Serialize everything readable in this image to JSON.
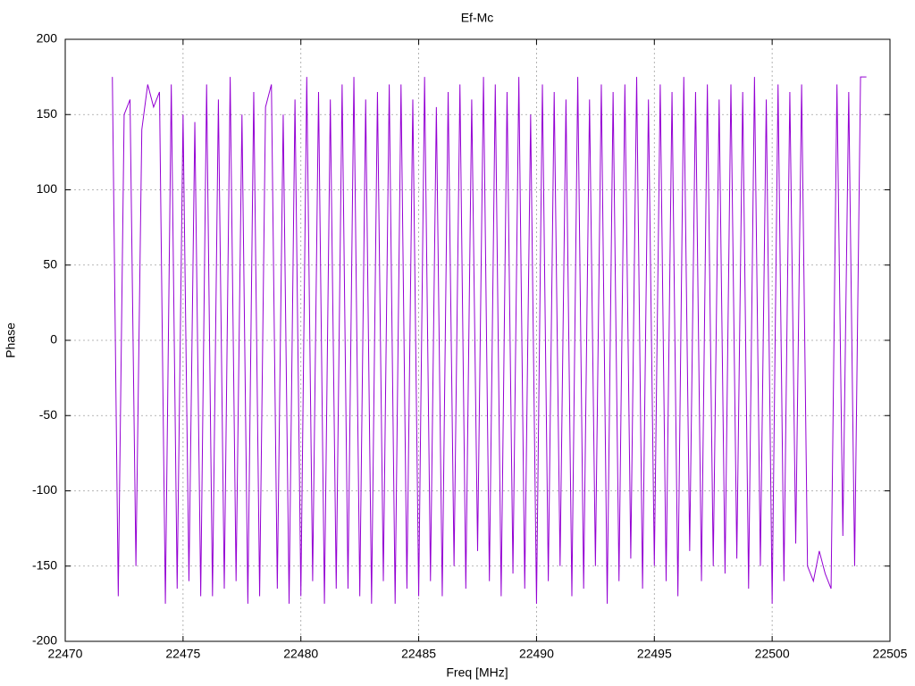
{
  "chart_data": {
    "type": "line",
    "title": "Ef-Mc",
    "x_label": "Freq [MHz]",
    "y_label": "Phase",
    "xlim": [
      22470,
      22505
    ],
    "xticks": [
      22470,
      22475,
      22480,
      22485,
      22490,
      22495,
      22500,
      22505
    ],
    "ylim": [
      -200,
      200
    ],
    "yticks": [
      -200,
      -150,
      -100,
      -50,
      0,
      50,
      100,
      150,
      200
    ],
    "grid": true,
    "x": [
      22472,
      22472.25,
      22472.5,
      22472.75,
      22473,
      22473.25,
      22473.5,
      22473.75,
      22474,
      22474.25,
      22474.5,
      22474.75,
      22475,
      22475.25,
      22475.5,
      22475.75,
      22476,
      22476.25,
      22476.5,
      22476.75,
      22477,
      22477.25,
      22477.5,
      22477.75,
      22478,
      22478.25,
      22478.5,
      22478.75,
      22479,
      22479.25,
      22479.5,
      22479.75,
      22480,
      22480.25,
      22480.5,
      22480.75,
      22481,
      22481.25,
      22481.5,
      22481.75,
      22482,
      22482.25,
      22482.5,
      22482.75,
      22483,
      22483.25,
      22483.5,
      22483.75,
      22484,
      22484.25,
      22484.5,
      22484.75,
      22485,
      22485.25,
      22485.5,
      22485.75,
      22486,
      22486.25,
      22486.5,
      22486.75,
      22487,
      22487.25,
      22487.5,
      22487.75,
      22488,
      22488.25,
      22488.5,
      22488.75,
      22489,
      22489.25,
      22489.5,
      22489.75,
      22490,
      22490.25,
      22490.5,
      22490.75,
      22491,
      22491.25,
      22491.5,
      22491.75,
      22492,
      22492.25,
      22492.5,
      22492.75,
      22493,
      22493.25,
      22493.5,
      22493.75,
      22494,
      22494.25,
      22494.5,
      22494.75,
      22495,
      22495.25,
      22495.5,
      22495.75,
      22496,
      22496.25,
      22496.5,
      22496.75,
      22497,
      22497.25,
      22497.5,
      22497.75,
      22498,
      22498.25,
      22498.5,
      22498.75,
      22499,
      22499.25,
      22499.5,
      22499.75,
      22500,
      22500.25,
      22500.5,
      22500.75,
      22501,
      22501.25,
      22501.5,
      22501.75,
      22502,
      22502.25,
      22502.5,
      22502.75,
      22503,
      22503.25,
      22503.5,
      22503.75,
      22504
    ],
    "series": [
      {
        "name": "Ef-Mc",
        "color": "#9400d3",
        "values": [
          175,
          -170,
          150,
          160,
          -150,
          140,
          170,
          155,
          165,
          -175,
          170,
          -165,
          150,
          -160,
          145,
          -170,
          170,
          -170,
          160,
          -165,
          175,
          -160,
          150,
          -175,
          165,
          -170,
          155,
          170,
          -165,
          150,
          -175,
          160,
          -170,
          175,
          -160,
          165,
          -175,
          160,
          -165,
          170,
          -165,
          175,
          -170,
          160,
          -175,
          165,
          -160,
          170,
          -175,
          170,
          -165,
          160,
          -170,
          175,
          -160,
          155,
          -170,
          165,
          -150,
          170,
          -165,
          160,
          -140,
          175,
          -160,
          170,
          -170,
          165,
          -155,
          175,
          -165,
          150,
          -175,
          170,
          -160,
          165,
          -150,
          160,
          -170,
          175,
          -165,
          160,
          -150,
          170,
          -175,
          165,
          -160,
          170,
          -145,
          175,
          -165,
          160,
          -150,
          170,
          -160,
          165,
          -170,
          175,
          -140,
          165,
          -160,
          170,
          -150,
          160,
          -155,
          170,
          -145,
          165,
          -165,
          175,
          -150,
          160,
          -175,
          170,
          -160,
          165,
          -135,
          170,
          -150,
          -160,
          -140,
          -155,
          -165,
          170,
          -130,
          165,
          -150,
          175,
          175
        ]
      }
    ]
  }
}
